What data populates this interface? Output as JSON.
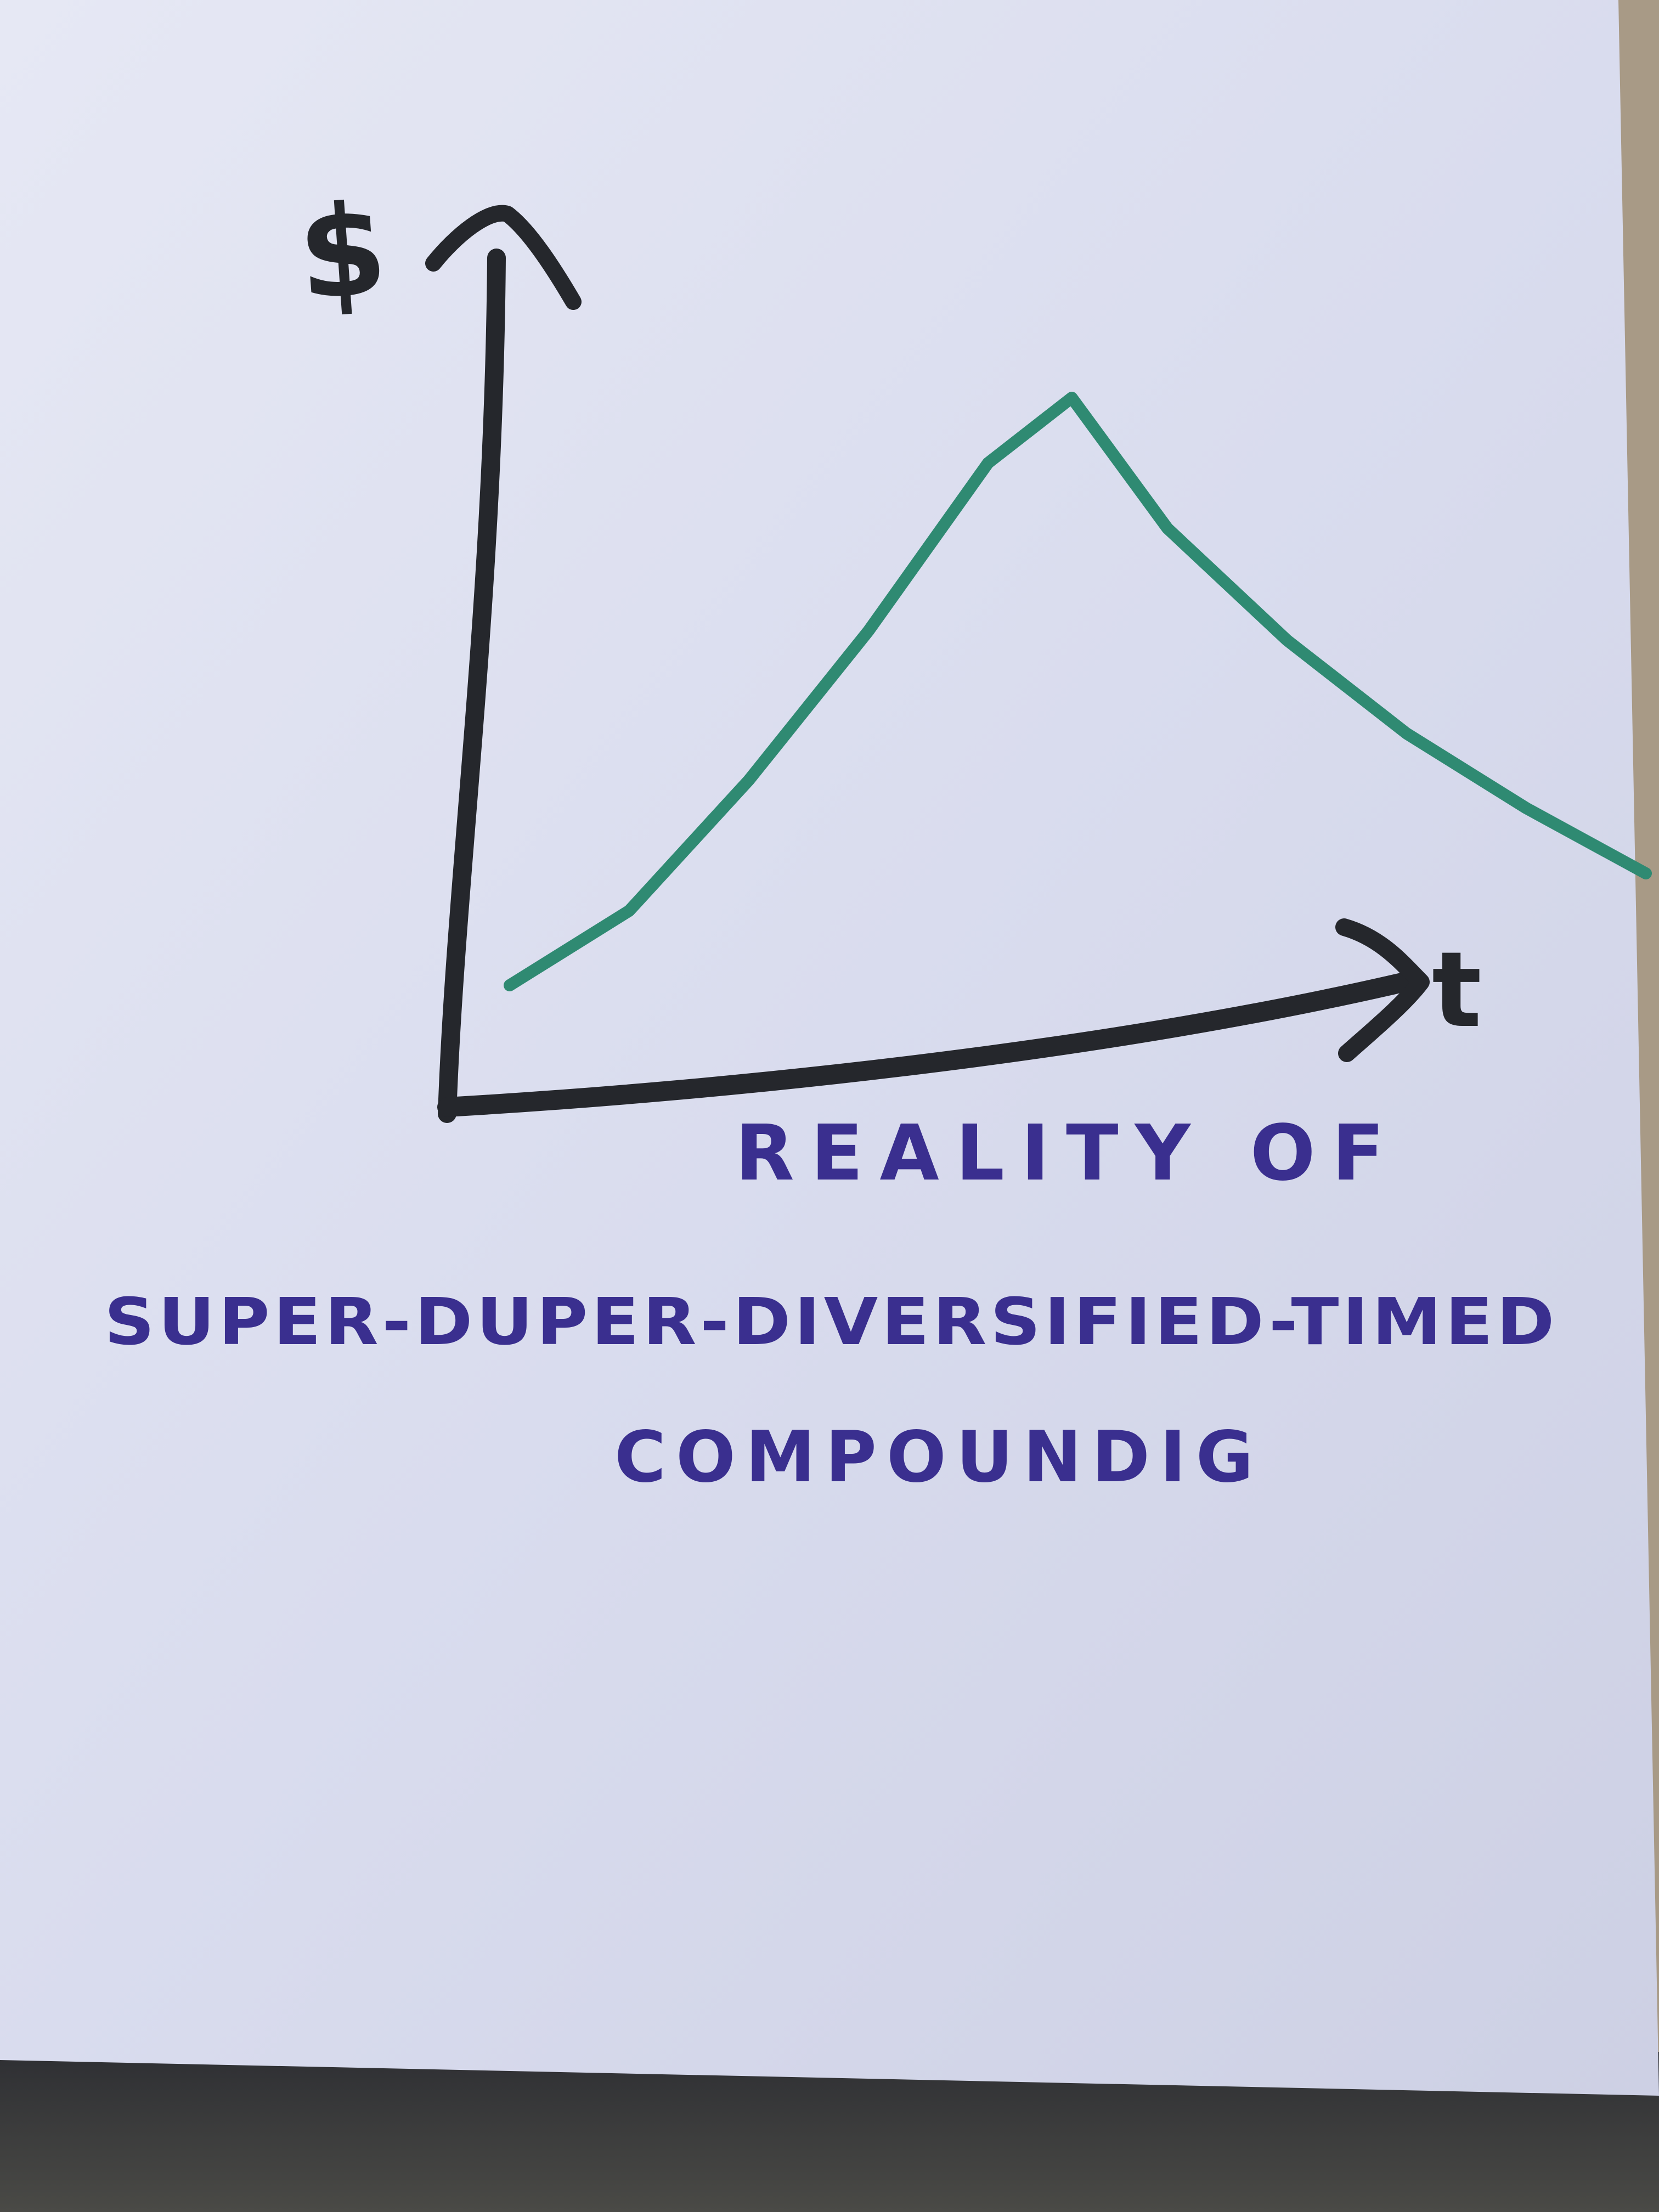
{
  "colors": {
    "paper": "#dcdff0",
    "axis_ink": "#25272c",
    "curve_ink": "#2f8a72",
    "caption_ink": "#3a2f8f",
    "table": "#a89a86",
    "background": "#3a3a38"
  },
  "chart_data": {
    "type": "line",
    "title": "",
    "ylabel": "$",
    "xlabel": "t",
    "xlim": [
      0,
      10
    ],
    "ylim": [
      0,
      10
    ],
    "grid": false,
    "legend": "none",
    "series": [
      {
        "x": [
          0.5,
          1.5,
          2.5,
          3.5,
          4.5,
          5.2,
          6.0,
          7.0,
          8.0,
          9.0,
          10.0
        ],
        "y": [
          1.2,
          2.0,
          3.4,
          5.0,
          6.8,
          7.5,
          6.1,
          4.9,
          3.9,
          3.1,
          2.4
        ]
      }
    ],
    "annotations": [
      "REALITY OF",
      "SUPER-DUPER-DIVERSIFIED-TIMED",
      "COMPOUNDIG"
    ]
  }
}
